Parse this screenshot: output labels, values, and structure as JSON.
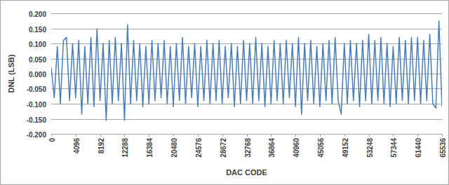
{
  "chart_data": {
    "type": "line",
    "x_label": "DAC CODE",
    "y_label": "DNL (LSB)",
    "color": "#4a7ebb",
    "grid": true,
    "xlim": [
      0,
      65536
    ],
    "ylim": [
      -0.2,
      0.2
    ],
    "xticks": [
      0,
      4096,
      8192,
      12288,
      16384,
      20480,
      24576,
      28672,
      32768,
      36864,
      40960,
      45056,
      49152,
      53248,
      57344,
      61440,
      65536
    ],
    "yticks": [
      {
        "value": -0.2,
        "label": "-0.200"
      },
      {
        "value": -0.15,
        "label": "-0.150"
      },
      {
        "value": -0.1,
        "label": "-0.100"
      },
      {
        "value": -0.05,
        "label": "-0.050"
      },
      {
        "value": 0,
        "label": "0.000"
      },
      {
        "value": 0.05,
        "label": "0.050"
      },
      {
        "value": 0.1,
        "label": "0.100"
      },
      {
        "value": 0.15,
        "label": "0.150"
      },
      {
        "value": 0.2,
        "label": "0.200"
      }
    ],
    "x": [
      0,
      512,
      1024,
      1536,
      2048,
      2560,
      3072,
      3584,
      4096,
      4608,
      5120,
      5632,
      6144,
      6656,
      7168,
      7680,
      8192,
      8704,
      9216,
      9728,
      10240,
      10752,
      11264,
      11776,
      12288,
      12800,
      13312,
      13824,
      14336,
      14848,
      15360,
      15872,
      16384,
      16896,
      17408,
      17920,
      18432,
      18944,
      19456,
      19968,
      20480,
      20992,
      21504,
      22016,
      22528,
      23040,
      23552,
      24064,
      24576,
      25088,
      25600,
      26112,
      26624,
      27136,
      27648,
      28160,
      28672,
      29184,
      29696,
      30208,
      30720,
      31232,
      31744,
      32256,
      32768,
      33280,
      33792,
      34304,
      34816,
      35328,
      35840,
      36352,
      36864,
      37376,
      37888,
      38400,
      38912,
      39424,
      39936,
      40448,
      40960,
      41472,
      41984,
      42496,
      43008,
      43520,
      44032,
      44544,
      45056,
      45568,
      46080,
      46592,
      47104,
      47616,
      48128,
      48640,
      49152,
      49664,
      50176,
      50688,
      51200,
      51712,
      52224,
      52736,
      53248,
      53760,
      54272,
      54784,
      55296,
      55808,
      56320,
      56832,
      57344,
      57856,
      58368,
      58880,
      59392,
      59904,
      60416,
      60928,
      61440,
      61952,
      62464,
      62976,
      63488,
      64000,
      64512,
      65024,
      65536
    ],
    "values": [
      0.02,
      -0.08,
      0.09,
      -0.1,
      0.11,
      0.12,
      -0.09,
      0.1,
      -0.08,
      0.11,
      -0.135,
      0.09,
      -0.1,
      0.12,
      -0.11,
      0.148,
      -0.09,
      0.1,
      -0.155,
      0.11,
      -0.1,
      0.12,
      -0.09,
      0.1,
      -0.155,
      0.162,
      -0.1,
      0.11,
      -0.09,
      0.1,
      -0.11,
      0.09,
      -0.1,
      0.11,
      -0.09,
      0.1,
      -0.08,
      0.11,
      -0.1,
      0.09,
      -0.11,
      0.1,
      -0.09,
      0.12,
      -0.1,
      0.09,
      -0.08,
      0.1,
      -0.11,
      0.09,
      -0.09,
      0.11,
      -0.1,
      0.1,
      -0.09,
      0.11,
      -0.1,
      0.09,
      -0.08,
      0.1,
      -0.11,
      0.09,
      -0.1,
      0.11,
      -0.09,
      0.1,
      -0.1,
      0.12,
      -0.09,
      0.1,
      -0.11,
      0.09,
      -0.1,
      0.11,
      -0.09,
      0.1,
      -0.1,
      0.11,
      -0.08,
      0.1,
      -0.11,
      0.12,
      -0.135,
      0.1,
      -0.09,
      0.11,
      -0.1,
      0.09,
      -0.11,
      0.1,
      -0.09,
      0.11,
      -0.1,
      0.12,
      -0.09,
      -0.135,
      0.1,
      -0.1,
      0.11,
      -0.09,
      0.1,
      -0.11,
      0.11,
      -0.09,
      0.13,
      -0.1,
      0.11,
      -0.09,
      0.12,
      -0.1,
      0.1,
      -0.11,
      0.09,
      -0.1,
      0.12,
      -0.09,
      0.11,
      -0.1,
      0.12,
      -0.09,
      0.12,
      -0.1,
      0.11,
      -0.09,
      0.13,
      -0.1,
      -0.115,
      0.175,
      -0.11
    ]
  }
}
